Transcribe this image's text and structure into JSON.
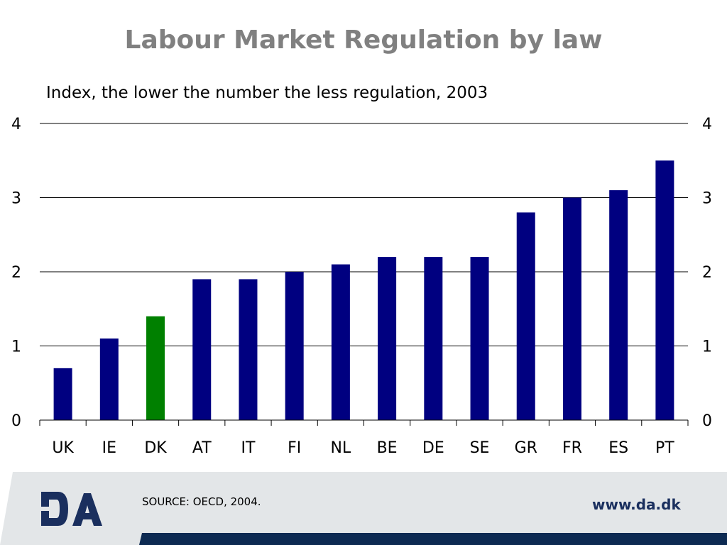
{
  "title": "Labour Market Regulation by law",
  "subtitle": "Index, the lower the number the less regulation, 2003",
  "footer": {
    "source": "SOURCE: OECD, 2004.",
    "website": "www.da.dk",
    "logo_text": "DA"
  },
  "colors": {
    "bar": "#000080",
    "highlight": "#008000",
    "footer_band": "#e3e6e8",
    "footer_bar": "#0d2a52",
    "logo": "#1a2f5e"
  },
  "chart_data": {
    "type": "bar",
    "categories": [
      "UK",
      "IE",
      "DK",
      "AT",
      "IT",
      "FI",
      "NL",
      "BE",
      "DE",
      "SE",
      "GR",
      "FR",
      "ES",
      "PT"
    ],
    "values": [
      0.7,
      1.1,
      1.4,
      1.9,
      1.9,
      2.0,
      2.1,
      2.2,
      2.2,
      2.2,
      2.8,
      3.0,
      3.1,
      3.5
    ],
    "highlight_category": "DK",
    "ylim": [
      0,
      4
    ],
    "yticks": [
      0,
      1,
      2,
      3,
      4
    ],
    "y_axis_sides": "left and right",
    "grid": true,
    "xlabel": "",
    "ylabel": ""
  }
}
